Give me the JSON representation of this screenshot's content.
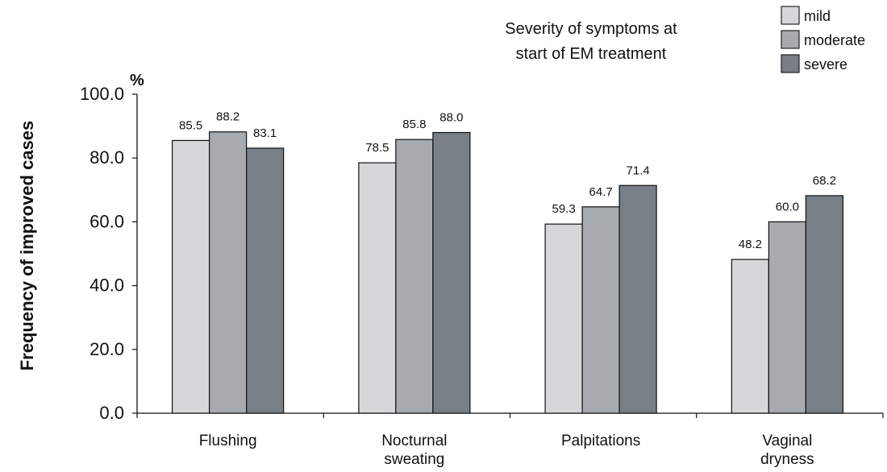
{
  "chart_data": {
    "type": "bar",
    "categories": [
      [
        "Flushing"
      ],
      [
        "Nocturnal",
        "sweating"
      ],
      [
        "Palpitations"
      ],
      [
        "Vaginal",
        "dryness"
      ]
    ],
    "series": [
      {
        "name": "mild",
        "color": "#d5d7d9",
        "values": [
          85.5,
          78.5,
          59.3,
          48.2
        ]
      },
      {
        "name": "moderate",
        "color": "#a7abaf",
        "values": [
          88.2,
          85.8,
          64.7,
          60.0
        ]
      },
      {
        "name": "severe",
        "color": "#787f86",
        "values": [
          83.1,
          88.0,
          71.4,
          68.2
        ]
      }
    ],
    "ylabel": "Frequency of improved cases",
    "y_unit": "%",
    "ylim": [
      0,
      100
    ],
    "y_ticks": [
      "0.0",
      "20.0",
      "40.0",
      "60.0",
      "80.0",
      "100.0"
    ],
    "legend_title": [
      "Severity of symptoms at",
      "start of EM treatment"
    ],
    "legend_position": "top-right",
    "grid": false
  }
}
